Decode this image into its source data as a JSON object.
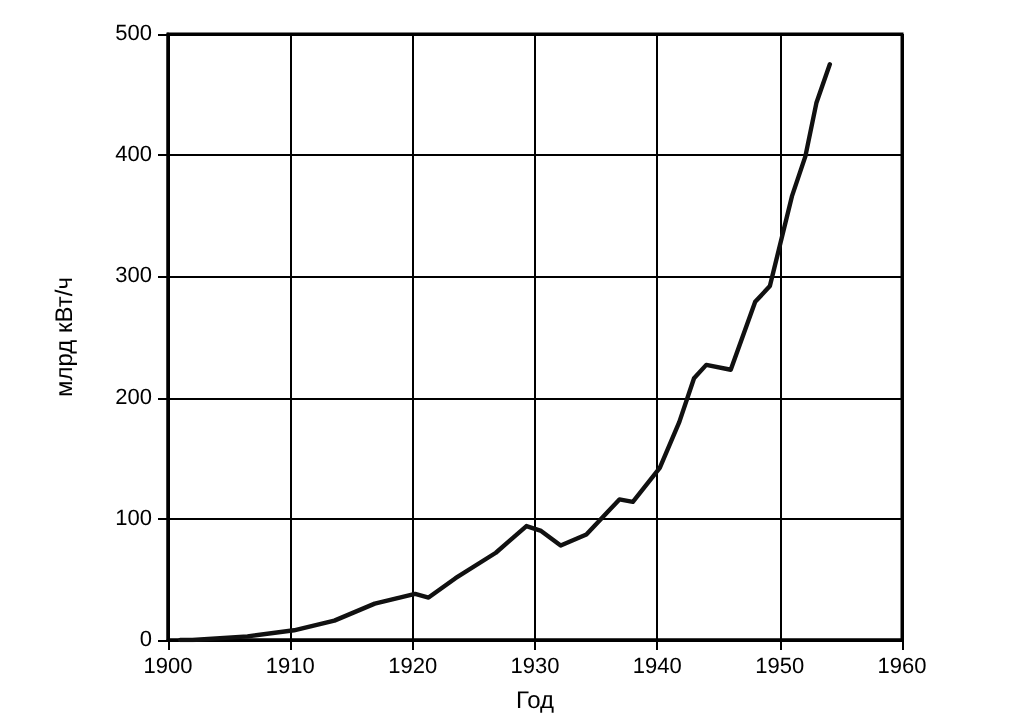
{
  "chart_data": {
    "type": "line",
    "xlabel": "Год",
    "ylabel": "млрд кВт/ч",
    "x": [
      1901,
      1902,
      1906.5,
      1910.3,
      1913.6,
      1916.9,
      1920.2,
      1921.3,
      1923.5,
      1926.8,
      1929.3,
      1930.5,
      1932.1,
      1934.2,
      1936.9,
      1938,
      1940.2,
      1941.8,
      1943,
      1944,
      1946,
      1948,
      1949.2,
      1951,
      1952.1,
      1953,
      1954.1
    ],
    "series": [
      {
        "color": "#111111",
        "values": [
          0,
          0,
          3,
          8,
          16,
          30,
          38,
          35,
          51,
          72,
          94,
          90,
          78,
          87,
          116,
          114,
          142,
          180,
          216,
          227,
          223,
          279,
          292,
          366,
          399,
          443,
          475
        ]
      }
    ],
    "xlim": [
      1900,
      1960
    ],
    "xticks": [
      1900,
      1910,
      1920,
      1930,
      1940,
      1950,
      1960
    ],
    "ylim": [
      0,
      500
    ],
    "yticks": [
      0,
      100,
      200,
      300,
      400,
      500
    ],
    "grid": true,
    "marker": "none",
    "line_style": "solid"
  }
}
